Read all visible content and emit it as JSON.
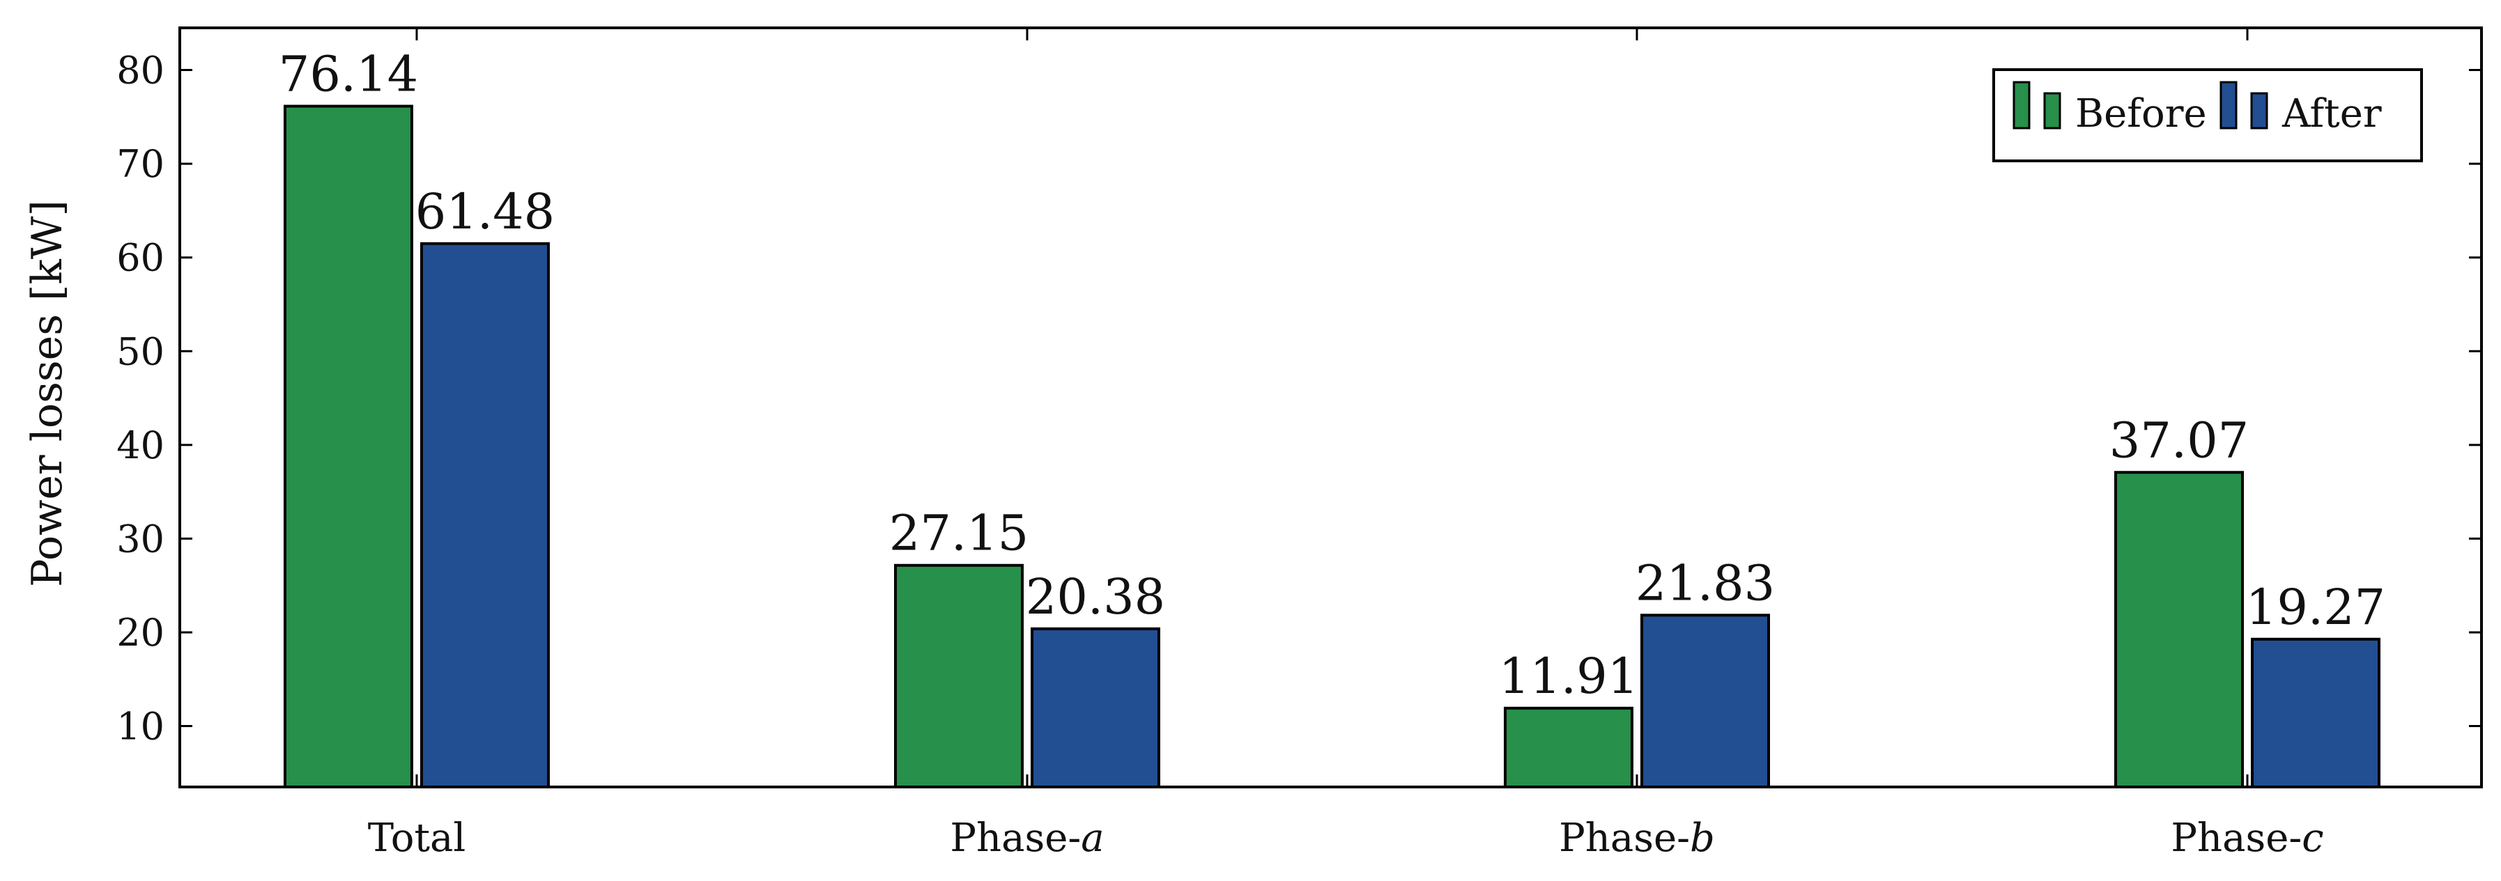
{
  "chart_data": {
    "type": "bar",
    "categories": [
      {
        "name": "Total",
        "main": "Total",
        "sub": ""
      },
      {
        "name": "Phase-a",
        "main": "Phase-",
        "sub": "a"
      },
      {
        "name": "Phase-b",
        "main": "Phase-",
        "sub": "b"
      },
      {
        "name": "Phase-c",
        "main": "Phase-",
        "sub": "c"
      }
    ],
    "series": [
      {
        "name": "Before",
        "color": "#27904a",
        "values": [
          76.14,
          27.15,
          11.91,
          37.07
        ]
      },
      {
        "name": "After",
        "color": "#224e92",
        "values": [
          61.48,
          20.38,
          21.83,
          19.27
        ]
      }
    ],
    "value_labels": [
      [
        "76.14",
        "27.15",
        "11.91",
        "37.07"
      ],
      [
        "61.48",
        "20.38",
        "21.83",
        "19.27"
      ]
    ],
    "ylabel": "Power losses [kW]",
    "xlabel": "",
    "title": "",
    "ylim": [
      3.5,
      84.5
    ],
    "yticks": [
      10,
      20,
      30,
      40,
      50,
      60,
      70,
      80
    ],
    "grid": false,
    "legend_position": "top-right"
  }
}
